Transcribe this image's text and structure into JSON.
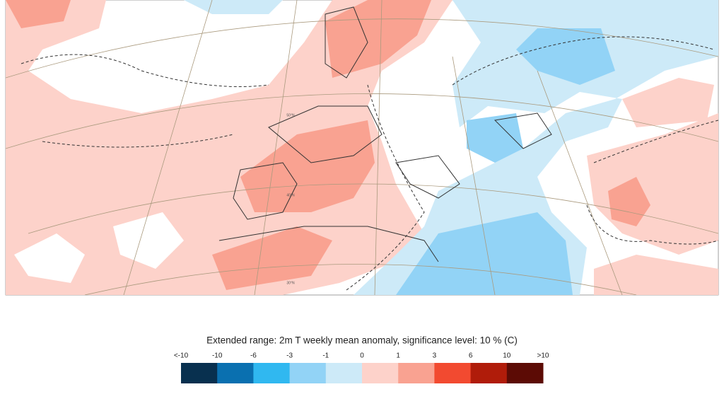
{
  "map": {
    "latitude_labels": [
      "50°N",
      "40°N",
      "30°N"
    ]
  },
  "legend": {
    "title": "Extended range: 2m T weekly mean anomaly, significance level: 10 % (C)",
    "labels": [
      "<-10",
      "-10",
      "-6",
      "-3",
      "-1",
      "0",
      "1",
      "3",
      "6",
      "10",
      ">10"
    ],
    "colors": [
      "#08304f",
      "#0a70b0",
      "#30b8f0",
      "#92d3f6",
      "#cdeaf8",
      "#fdd2ca",
      "#f9a291",
      "#f24a30",
      "#b01c0a",
      "#5c0b05"
    ]
  }
}
